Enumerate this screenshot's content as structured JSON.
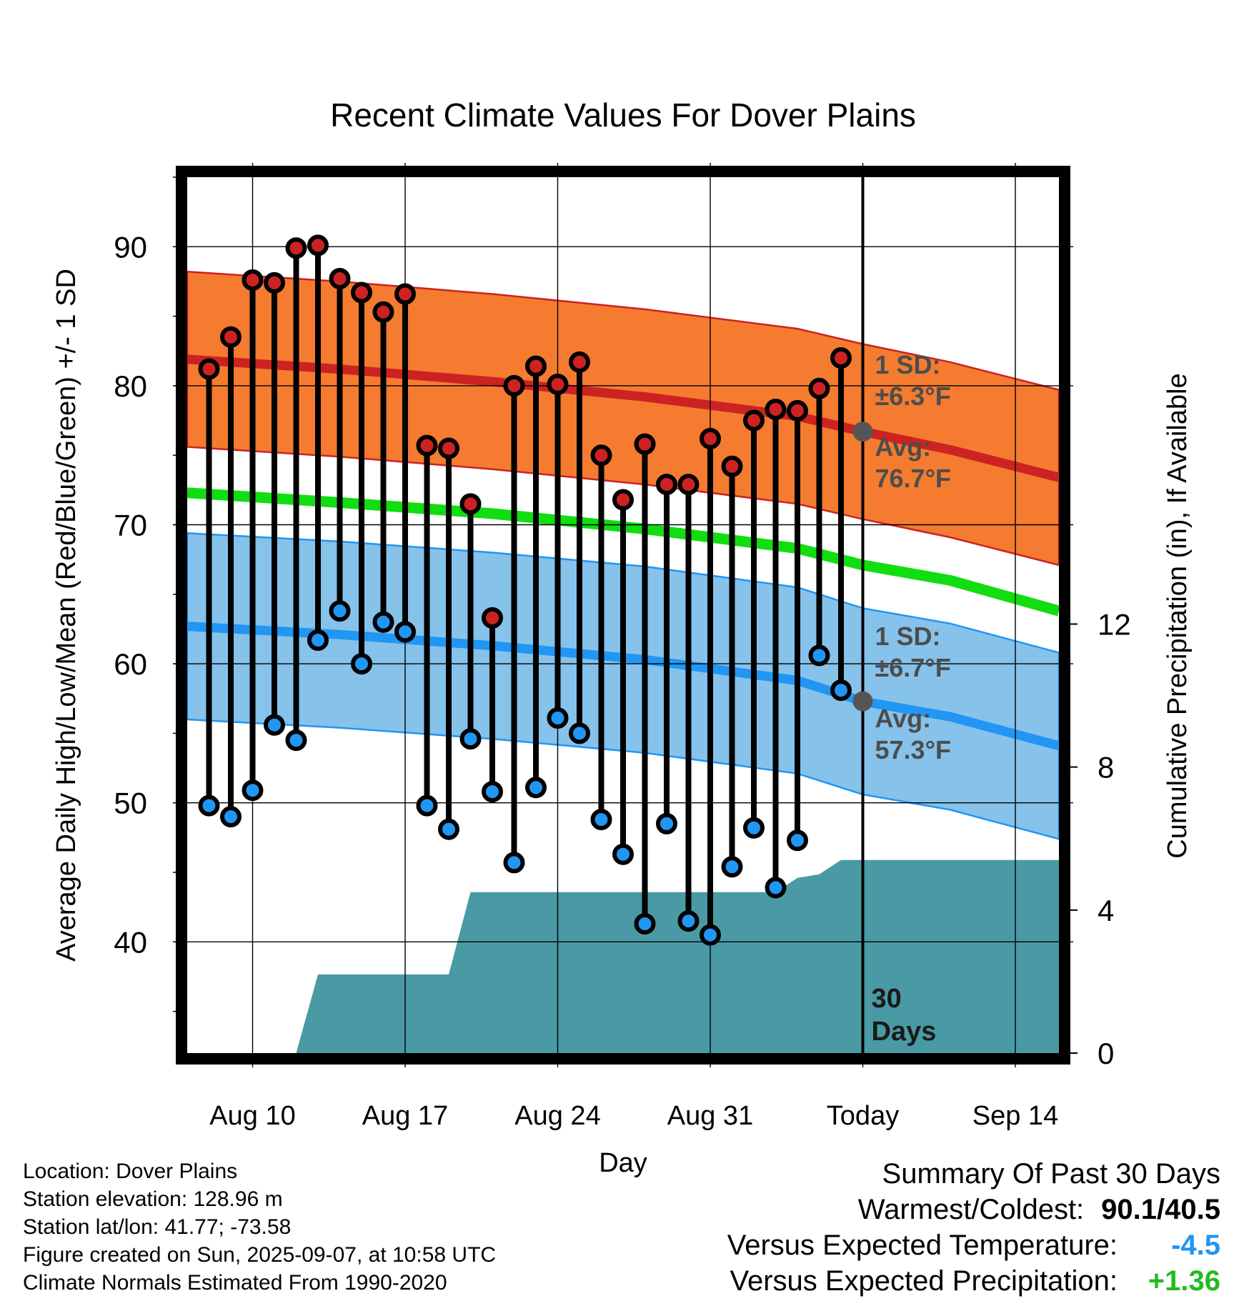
{
  "chart_data": {
    "type": "line",
    "title": "Recent Climate Values For Dover Plains",
    "xlabel": "Day",
    "ylabel": "Average Daily High/Low/Mean (Red/Blue/Green) +/- 1 SD",
    "y2label": "Cumulative Precipitation (in), If Available",
    "x_tick_labels": [
      "Aug 10",
      "Aug 17",
      "Aug 24",
      "Aug 31",
      "Today",
      "Sep 14"
    ],
    "x_ticks": [
      "2025-08-10",
      "2025-08-17",
      "2025-08-24",
      "2025-08-31",
      "2025-09-07",
      "2025-09-14"
    ],
    "xlim": [
      "2025-08-07",
      "2025-09-16"
    ],
    "y_ticks": [
      40,
      50,
      60,
      70,
      80,
      90
    ],
    "ylim": [
      32,
      95
    ],
    "y2_ticks": [
      0,
      4,
      8,
      12
    ],
    "y2lim": [
      0,
      24.5
    ],
    "grid": true,
    "today_line": "2025-09-07",
    "today_label": "30\nDays",
    "series": [
      {
        "name": "High",
        "color": "#cc2222",
        "x": [
          "2025-08-08",
          "2025-08-09",
          "2025-08-10",
          "2025-08-11",
          "2025-08-12",
          "2025-08-13",
          "2025-08-14",
          "2025-08-15",
          "2025-08-16",
          "2025-08-17",
          "2025-08-18",
          "2025-08-19",
          "2025-08-20",
          "2025-08-21",
          "2025-08-22",
          "2025-08-23",
          "2025-08-24",
          "2025-08-25",
          "2025-08-26",
          "2025-08-27",
          "2025-08-28",
          "2025-08-29",
          "2025-08-30",
          "2025-08-31",
          "2025-09-01",
          "2025-09-02",
          "2025-09-03",
          "2025-09-04",
          "2025-09-05",
          "2025-09-06"
        ],
        "values": [
          81.2,
          83.5,
          87.6,
          87.4,
          89.9,
          90.1,
          87.7,
          86.7,
          85.3,
          86.6,
          75.7,
          75.5,
          71.5,
          63.3,
          80.0,
          81.4,
          80.1,
          81.7,
          75.0,
          71.8,
          75.8,
          72.9,
          72.9,
          76.2,
          74.2,
          77.5,
          78.3,
          78.2,
          79.8,
          82.0
        ]
      },
      {
        "name": "Low",
        "color": "#2196f3",
        "x": [
          "2025-08-08",
          "2025-08-09",
          "2025-08-10",
          "2025-08-11",
          "2025-08-12",
          "2025-08-13",
          "2025-08-14",
          "2025-08-15",
          "2025-08-16",
          "2025-08-17",
          "2025-08-18",
          "2025-08-19",
          "2025-08-20",
          "2025-08-21",
          "2025-08-22",
          "2025-08-23",
          "2025-08-24",
          "2025-08-25",
          "2025-08-26",
          "2025-08-27",
          "2025-08-28",
          "2025-08-29",
          "2025-08-30",
          "2025-08-31",
          "2025-09-01",
          "2025-09-02",
          "2025-09-03",
          "2025-09-04",
          "2025-09-05",
          "2025-09-06"
        ],
        "values": [
          49.8,
          49.0,
          50.9,
          55.6,
          54.5,
          61.7,
          63.8,
          60.0,
          63.0,
          62.3,
          49.8,
          48.1,
          54.6,
          50.8,
          45.7,
          51.1,
          56.1,
          55.0,
          48.8,
          46.3,
          41.3,
          48.5,
          41.5,
          40.5,
          45.4,
          48.2,
          43.9,
          47.3,
          60.6,
          58.1
        ]
      },
      {
        "name": "Normal High",
        "color": "#cc2222",
        "x": [
          "2025-08-07",
          "2025-08-14",
          "2025-08-21",
          "2025-08-28",
          "2025-09-04",
          "2025-09-07",
          "2025-09-11",
          "2025-09-16"
        ],
        "values": [
          81.9,
          81.2,
          80.3,
          79.2,
          77.8,
          76.7,
          75.4,
          73.4
        ],
        "sd": 6.3
      },
      {
        "name": "Normal Low",
        "color": "#2196f3",
        "x": [
          "2025-08-07",
          "2025-08-14",
          "2025-08-21",
          "2025-08-28",
          "2025-09-04",
          "2025-09-07",
          "2025-09-11",
          "2025-09-16"
        ],
        "values": [
          62.7,
          62.1,
          61.3,
          60.3,
          58.8,
          57.3,
          56.2,
          54.1
        ],
        "sd": 6.7
      },
      {
        "name": "Normal Mean",
        "color": "#11dd11",
        "x": [
          "2025-08-07",
          "2025-08-14",
          "2025-08-21",
          "2025-08-28",
          "2025-09-04",
          "2025-09-07",
          "2025-09-11",
          "2025-09-16"
        ],
        "values": [
          72.3,
          71.6,
          70.8,
          69.7,
          68.3,
          67.1,
          66.0,
          63.8
        ]
      },
      {
        "name": "Cumulative Precipitation",
        "color": "#4a9aa5",
        "axis": "y2",
        "x": [
          "2025-08-07",
          "2025-08-12",
          "2025-08-13",
          "2025-08-19",
          "2025-08-20",
          "2025-09-03",
          "2025-09-04",
          "2025-09-05",
          "2025-09-06",
          "2025-09-16"
        ],
        "values": [
          0,
          0,
          2.2,
          2.2,
          4.5,
          4.5,
          4.9,
          5.0,
          5.4,
          5.4
        ]
      }
    ],
    "annotations": {
      "high_sd": "1 SD:\n±6.3°F",
      "high_avg": "Avg:\n76.7°F",
      "low_sd": "1 SD:\n±6.7°F",
      "low_avg": "Avg:\n57.3°F"
    },
    "colors": {
      "high_band": "#f47b30",
      "high_line": "#cc2222",
      "low_band": "#86c2ea",
      "low_line": "#2196f3",
      "mean_line": "#11dd11",
      "precip": "#4a9aa5",
      "frame": "#000000"
    }
  },
  "info": {
    "location": "Location: Dover Plains",
    "elevation": "Station elevation: 128.96 m",
    "latlon": "Station lat/lon: 41.77; -73.58",
    "created": "Figure created on Sun, 2025-09-07, at 10:58 UTC",
    "normals": "Climate Normals Estimated From 1990-2020"
  },
  "summary": {
    "heading": "Summary Of Past 30 Days",
    "warm_cold_label": "Warmest/Coldest:",
    "warm_cold_value": "90.1/40.5",
    "temp_label": "Versus Expected Temperature:",
    "temp_value": "-4.5",
    "temp_color": "#2196f3",
    "precip_label": "Versus Expected Precipitation:",
    "precip_value": "+1.36",
    "precip_color": "#22bb22"
  }
}
